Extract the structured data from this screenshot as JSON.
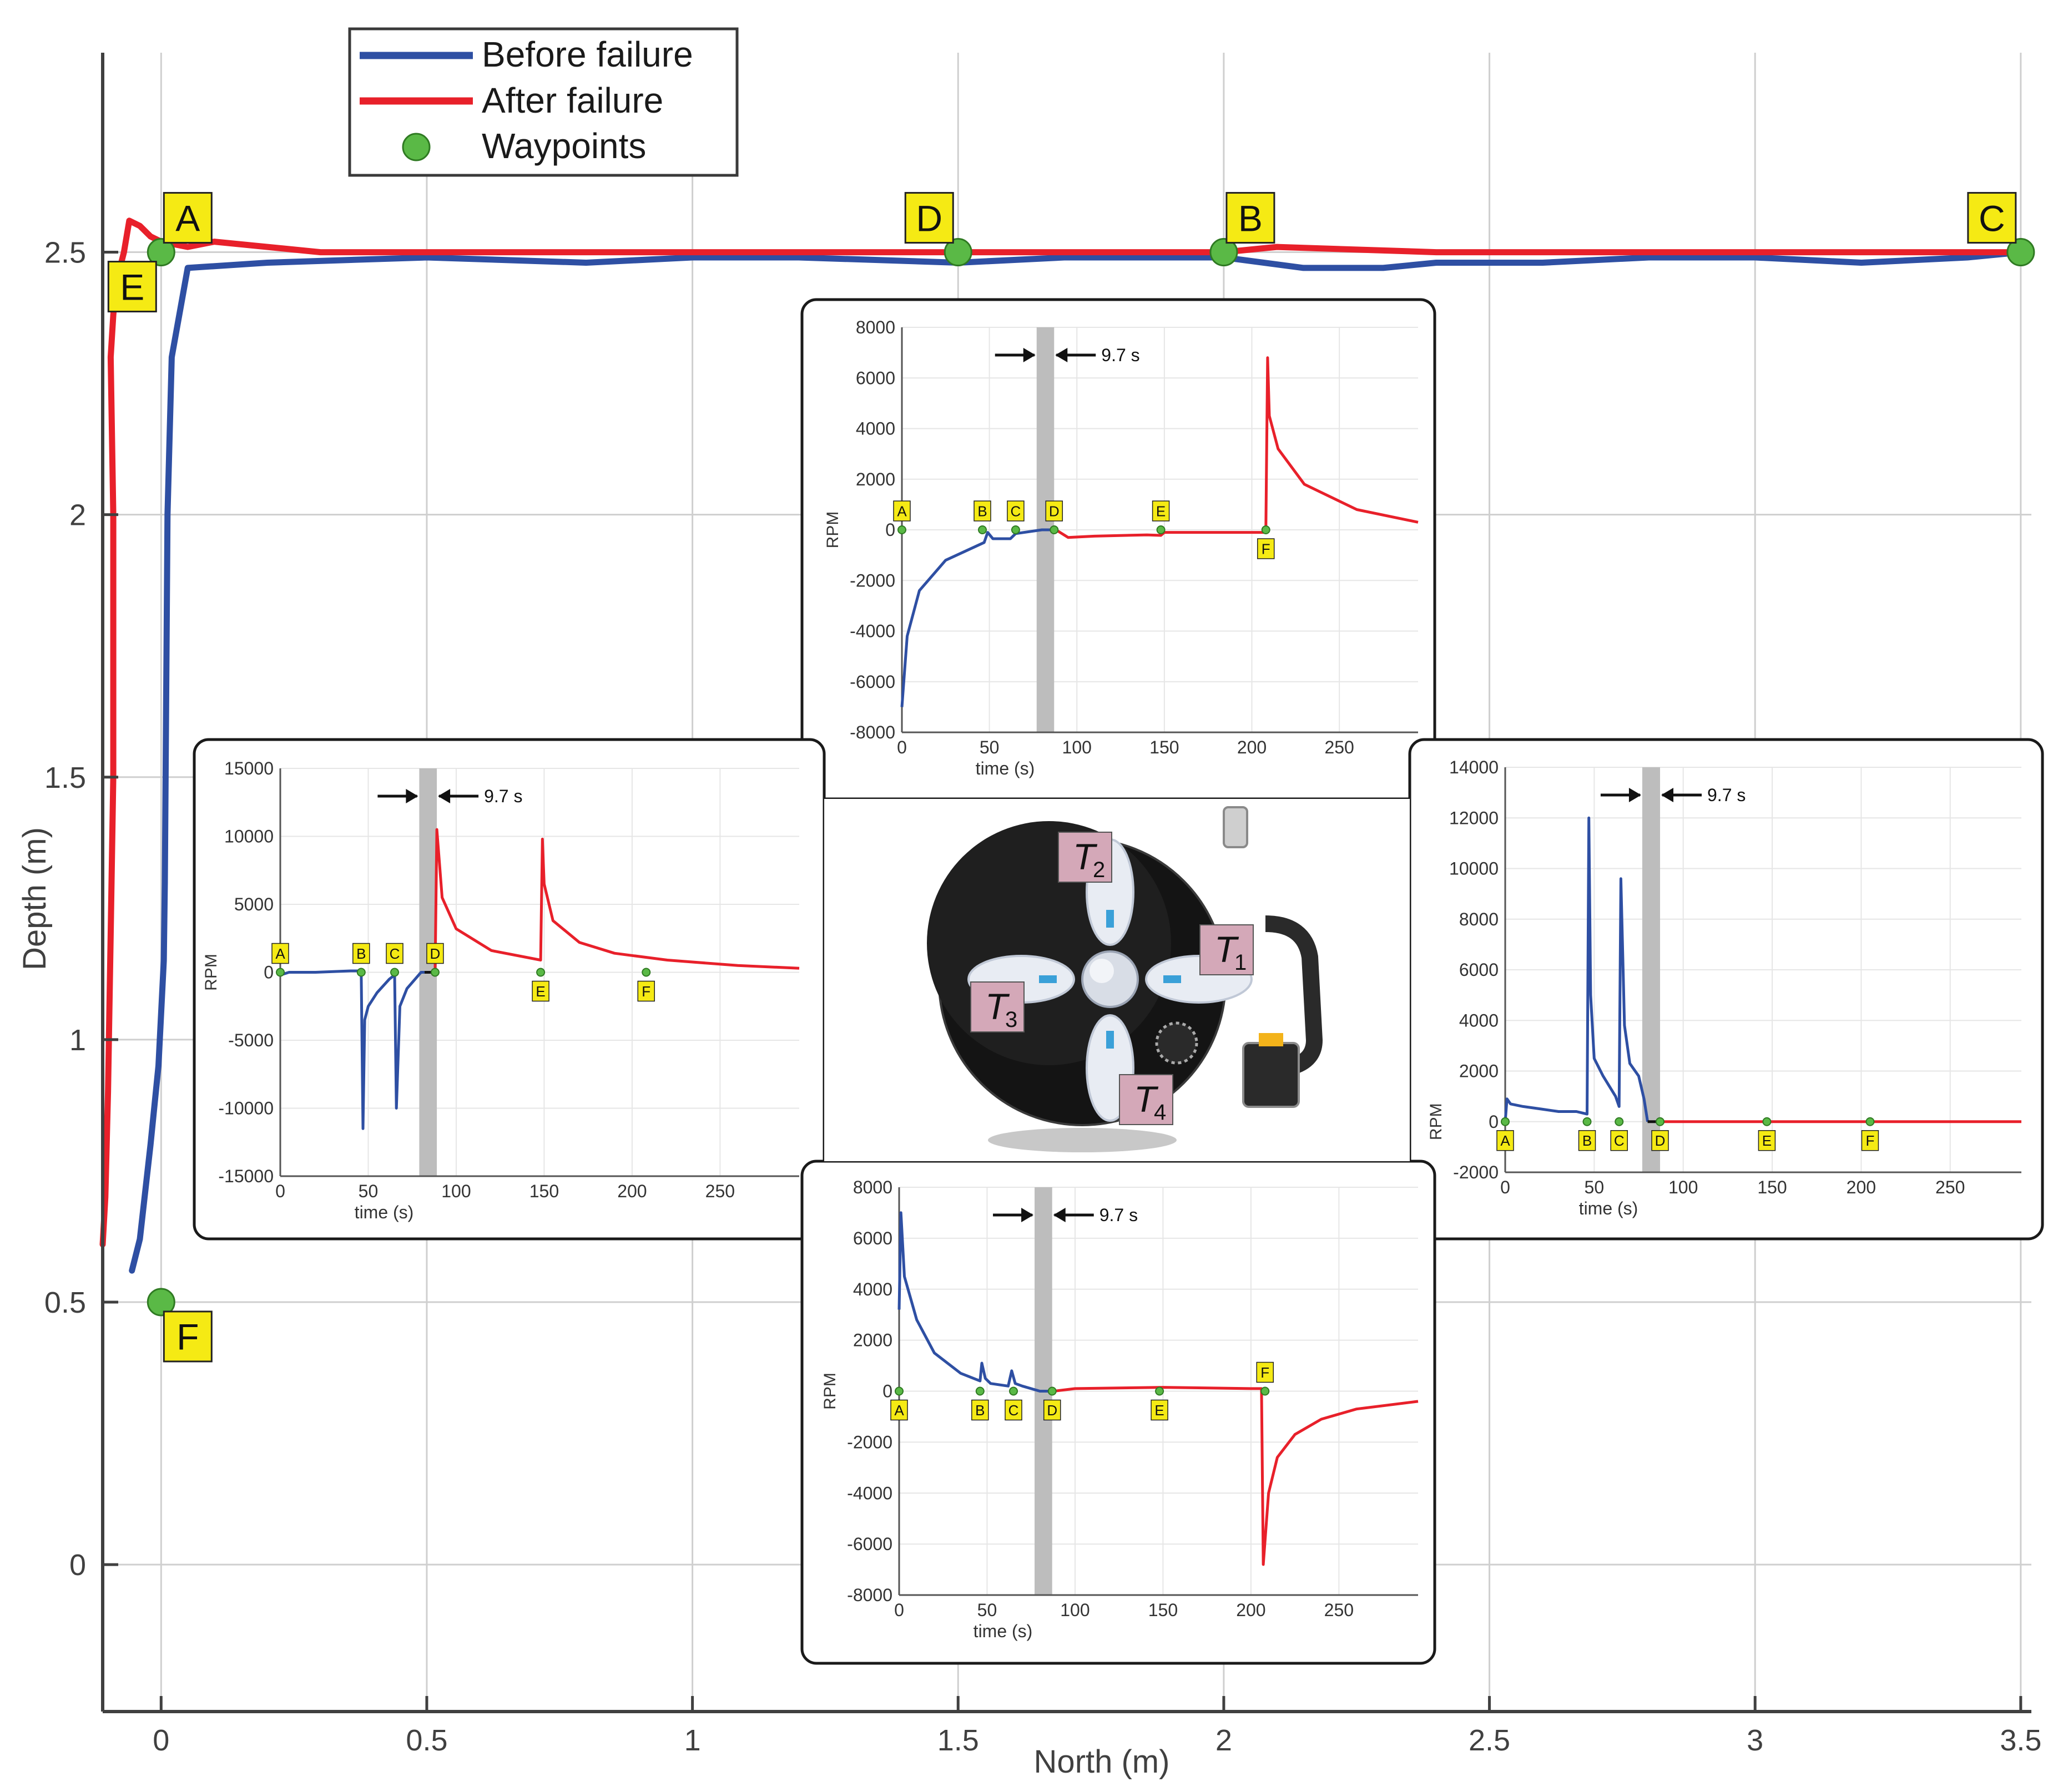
{
  "main_chart": {
    "type": "line",
    "xlabel": "North (m)",
    "ylabel": "Depth (m)",
    "xlim": [
      -0.11,
      3.52
    ],
    "ylim": [
      -0.28,
      2.88
    ],
    "x_ticks": [
      0,
      0.5,
      1,
      1.5,
      2,
      2.5,
      3,
      3.5
    ],
    "x_tick_labels": [
      "0",
      "0.5",
      "1",
      "1.5",
      "2",
      "2.5",
      "3",
      "3.5"
    ],
    "y_ticks": [
      0,
      0.5,
      1,
      1.5,
      2,
      2.5
    ],
    "y_tick_labels": [
      "0",
      "0.5",
      "1",
      "1.5",
      "2",
      "2.5"
    ],
    "grid": true,
    "legend": {
      "position": "top-left",
      "entries": [
        {
          "label": "Before failure",
          "color": "#2e4fa3",
          "kind": "line"
        },
        {
          "label": "After failure",
          "color": "#e8202a",
          "kind": "line"
        },
        {
          "label": "Waypoints",
          "color": "#5ab946",
          "kind": "marker"
        }
      ]
    },
    "series": [
      {
        "name": "Before failure",
        "color": "#2e4fa3",
        "x": [
          -0.055,
          -0.04,
          -0.02,
          -0.005,
          0.0,
          0.005,
          0.007,
          0.012,
          0.02,
          0.05,
          0.2,
          0.5,
          0.8,
          1.0,
          1.2,
          1.5,
          1.7,
          2.0,
          2.15,
          2.3,
          2.4,
          2.6,
          2.8,
          3.0,
          3.2,
          3.4,
          3.5
        ],
        "y": [
          0.56,
          0.62,
          0.8,
          0.95,
          1.05,
          1.15,
          1.3,
          2.0,
          2.3,
          2.47,
          2.48,
          2.49,
          2.48,
          2.49,
          2.49,
          2.48,
          2.49,
          2.49,
          2.47,
          2.47,
          2.48,
          2.48,
          2.49,
          2.49,
          2.48,
          2.49,
          2.5
        ]
      },
      {
        "name": "After failure",
        "color": "#e8202a",
        "x": [
          -0.11,
          -0.105,
          -0.1,
          -0.095,
          -0.09,
          -0.09,
          -0.095,
          -0.09,
          -0.085,
          -0.07,
          -0.06,
          -0.04,
          -0.02,
          0.0,
          0.05,
          0.1,
          0.3,
          0.6,
          1.0,
          1.5,
          2.0,
          2.1,
          2.4,
          2.8,
          3.2,
          3.5
        ],
        "y": [
          0.61,
          0.7,
          0.9,
          1.2,
          1.5,
          2.0,
          2.3,
          2.38,
          2.44,
          2.5,
          2.56,
          2.55,
          2.53,
          2.52,
          2.51,
          2.52,
          2.5,
          2.5,
          2.5,
          2.5,
          2.5,
          2.51,
          2.5,
          2.5,
          2.5,
          2.5
        ]
      }
    ],
    "waypoints": [
      {
        "label": "A",
        "x": 0,
        "y": 2.5
      },
      {
        "label": "E",
        "x": 0,
        "y": 2.5
      },
      {
        "label": "D",
        "x": 1.5,
        "y": 2.5
      },
      {
        "label": "B",
        "x": 2,
        "y": 2.5
      },
      {
        "label": "C",
        "x": 3.5,
        "y": 2.5
      },
      {
        "label": "F",
        "x": 0,
        "y": 0.5
      }
    ]
  },
  "insets": [
    {
      "id": "T2",
      "type": "line",
      "xlabel": "time (s)",
      "ylabel": "RPM",
      "xlim": [
        0,
        295
      ],
      "ylim": [
        -8000,
        8000
      ],
      "x_ticks": [
        0,
        50,
        100,
        150,
        200,
        250
      ],
      "y_ticks": [
        -8000,
        -6000,
        -4000,
        -2000,
        0,
        2000,
        4000,
        6000,
        8000
      ],
      "failure_band": [
        77,
        87
      ],
      "interval_label": "9.7 s",
      "before": {
        "t": [
          0,
          3,
          10,
          25,
          47,
          49,
          52,
          62,
          65,
          80,
          85
        ],
        "v": [
          -7000,
          -4200,
          -2400,
          -1200,
          -500,
          -100,
          -350,
          -350,
          -150,
          0,
          0
        ]
      },
      "after": {
        "t": [
          88,
          95,
          110,
          140,
          148,
          150,
          180,
          208,
          209,
          210,
          215,
          230,
          260,
          295
        ],
        "v": [
          0,
          -300,
          -250,
          -200,
          -220,
          -100,
          -100,
          -100,
          6800,
          4500,
          3200,
          1800,
          800,
          300
        ]
      },
      "waypoints": [
        {
          "label": "A",
          "t": 0,
          "place": "above"
        },
        {
          "label": "B",
          "t": 46,
          "place": "above"
        },
        {
          "label": "C",
          "t": 65,
          "place": "above"
        },
        {
          "label": "D",
          "t": 87,
          "place": "above"
        },
        {
          "label": "E",
          "t": 148,
          "place": "above"
        },
        {
          "label": "F",
          "t": 208,
          "place": "below"
        }
      ]
    },
    {
      "id": "T3",
      "type": "line",
      "xlabel": "time (s)",
      "ylabel": "RPM",
      "xlim": [
        0,
        295
      ],
      "ylim": [
        -15000,
        15000
      ],
      "x_ticks": [
        0,
        50,
        100,
        150,
        200,
        250
      ],
      "y_ticks": [
        -15000,
        -10000,
        -5000,
        0,
        5000,
        10000,
        15000
      ],
      "failure_band": [
        79,
        89
      ],
      "interval_label": "9.7 s",
      "before": {
        "t": [
          0,
          5,
          10,
          20,
          30,
          40,
          46,
          47,
          48,
          50,
          55,
          62,
          65,
          66,
          68,
          72,
          80,
          82
        ],
        "v": [
          -200,
          0,
          0,
          0,
          50,
          100,
          100,
          -11500,
          -3500,
          -2500,
          -1500,
          -500,
          -200,
          -10000,
          -2500,
          -1200,
          0,
          0
        ]
      },
      "after": {
        "t": [
          88,
          89,
          92,
          100,
          120,
          148,
          149,
          150,
          155,
          170,
          190,
          220,
          260,
          295
        ],
        "v": [
          0,
          10500,
          5500,
          3200,
          1600,
          900,
          9800,
          6500,
          3800,
          2200,
          1400,
          900,
          500,
          300
        ]
      },
      "waypoints": [
        {
          "label": "A",
          "t": 0,
          "place": "above"
        },
        {
          "label": "B",
          "t": 46,
          "place": "above"
        },
        {
          "label": "C",
          "t": 65,
          "place": "above"
        },
        {
          "label": "D",
          "t": 88,
          "place": "above"
        },
        {
          "label": "E",
          "t": 148,
          "place": "below"
        },
        {
          "label": "F",
          "t": 208,
          "place": "below"
        }
      ]
    },
    {
      "id": "T1",
      "type": "line",
      "xlabel": "time (s)",
      "ylabel": "RPM",
      "xlim": [
        0,
        290
      ],
      "ylim": [
        -2000,
        14000
      ],
      "x_ticks": [
        0,
        50,
        100,
        150,
        200,
        250
      ],
      "y_ticks": [
        -2000,
        0,
        2000,
        4000,
        6000,
        8000,
        10000,
        12000,
        14000
      ],
      "failure_band": [
        77,
        87
      ],
      "interval_label": "9.7 s",
      "before": {
        "t": [
          0,
          1,
          3,
          10,
          20,
          30,
          40,
          46,
          47,
          48,
          50,
          55,
          62,
          64,
          65,
          67,
          70,
          75,
          78,
          80
        ],
        "v": [
          0,
          900,
          700,
          600,
          500,
          400,
          400,
          300,
          12000,
          5000,
          2500,
          1800,
          1000,
          600,
          9600,
          3800,
          2300,
          1800,
          900,
          0
        ]
      },
      "after": {
        "t": [
          88,
          100,
          150,
          200,
          250,
          290
        ],
        "v": [
          0,
          0,
          0,
          0,
          0,
          0
        ]
      },
      "waypoints": [
        {
          "label": "A",
          "t": 0,
          "place": "below"
        },
        {
          "label": "B",
          "t": 46,
          "place": "below"
        },
        {
          "label": "C",
          "t": 64,
          "place": "below"
        },
        {
          "label": "D",
          "t": 87,
          "place": "below"
        },
        {
          "label": "E",
          "t": 147,
          "place": "below"
        },
        {
          "label": "F",
          "t": 205,
          "place": "below"
        }
      ]
    },
    {
      "id": "T4",
      "type": "line",
      "xlabel": "time (s)",
      "ylabel": "RPM",
      "xlim": [
        0,
        295
      ],
      "ylim": [
        -8000,
        8000
      ],
      "x_ticks": [
        0,
        50,
        100,
        150,
        200,
        250
      ],
      "y_ticks": [
        -8000,
        -6000,
        -4000,
        -2000,
        0,
        2000,
        4000,
        6000,
        8000
      ],
      "failure_band": [
        77,
        87
      ],
      "interval_label": "9.7 s",
      "before": {
        "t": [
          0,
          1,
          3,
          10,
          20,
          35,
          46,
          47,
          49,
          52,
          62,
          64,
          66,
          70,
          80,
          85
        ],
        "v": [
          3200,
          7000,
          4500,
          2800,
          1500,
          700,
          400,
          1100,
          500,
          300,
          200,
          800,
          300,
          200,
          0,
          0
        ]
      },
      "after": {
        "t": [
          88,
          100,
          150,
          200,
          206,
          207,
          210,
          215,
          225,
          240,
          260,
          295
        ],
        "v": [
          0,
          100,
          150,
          100,
          100,
          -6800,
          -4000,
          -2600,
          -1700,
          -1100,
          -700,
          -400
        ]
      },
      "waypoints": [
        {
          "label": "A",
          "t": 0,
          "place": "below"
        },
        {
          "label": "B",
          "t": 46,
          "place": "below"
        },
        {
          "label": "C",
          "t": 65,
          "place": "below"
        },
        {
          "label": "D",
          "t": 87,
          "place": "below"
        },
        {
          "label": "E",
          "t": 148,
          "place": "below"
        },
        {
          "label": "F",
          "t": 208,
          "place": "above"
        }
      ]
    }
  ],
  "robot": {
    "thrusters": [
      {
        "label": "T",
        "sub": "1"
      },
      {
        "label": "T",
        "sub": "2"
      },
      {
        "label": "T",
        "sub": "3"
      },
      {
        "label": "T",
        "sub": "4"
      }
    ]
  },
  "colors": {
    "before": "#2e4fa3",
    "after": "#e8202a",
    "waypoint": "#5ab946",
    "label_fill": "#f5ea14",
    "thruster_tag": "#d4a8b8",
    "band": "#bdbdbd"
  }
}
